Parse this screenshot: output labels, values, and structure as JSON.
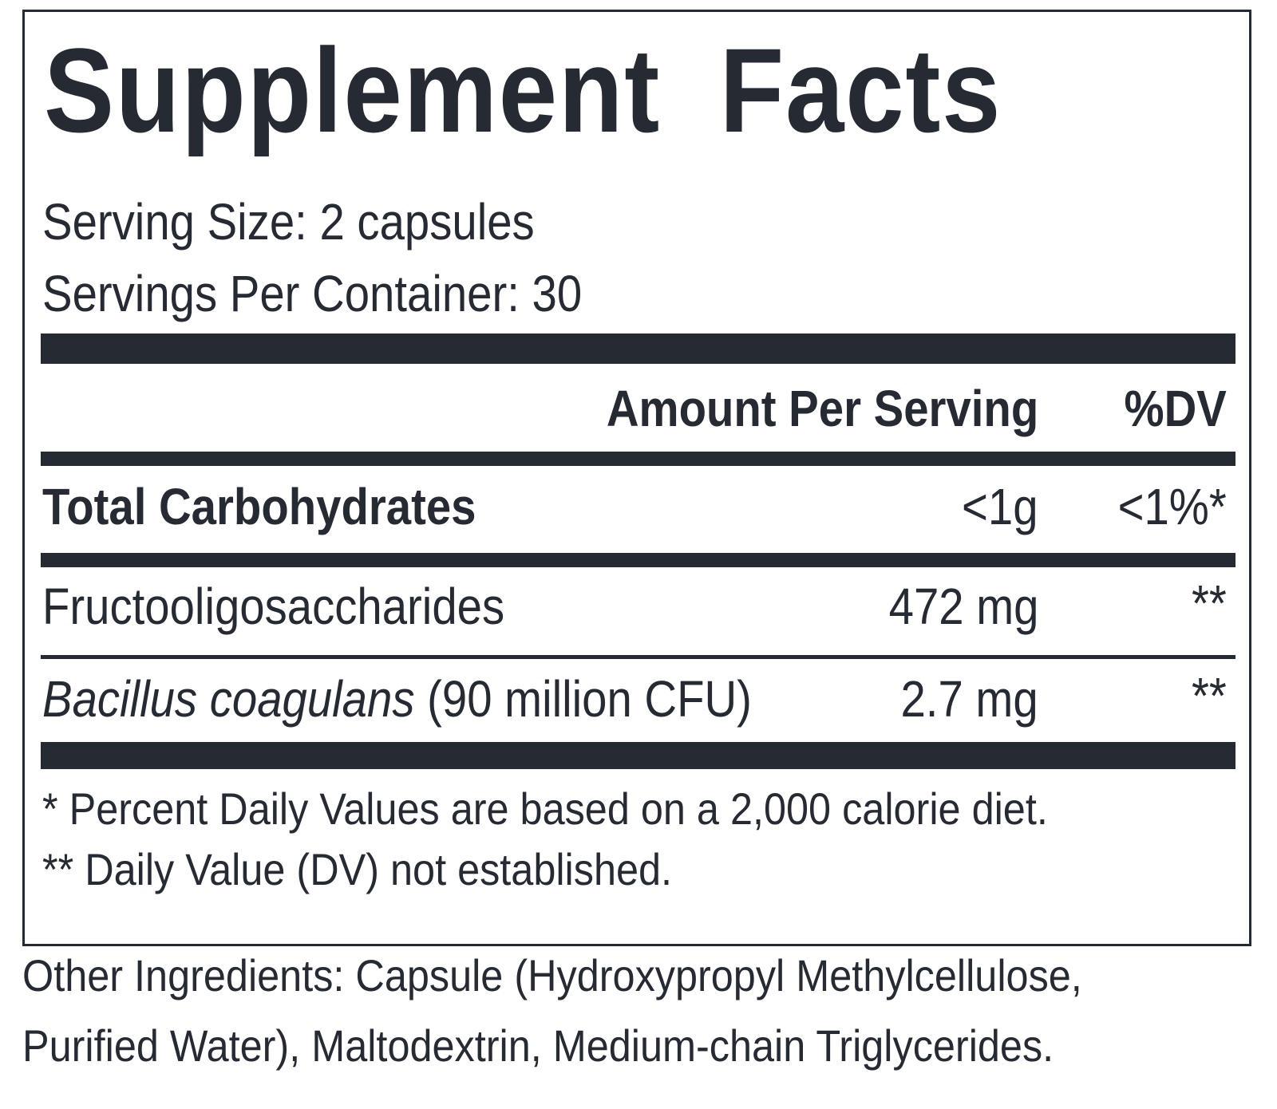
{
  "label": {
    "title": "Supplement Facts",
    "serving_size": "Serving Size: 2 capsules",
    "servings_per_container": "Servings Per Container: 30",
    "header": {
      "amount": "Amount Per Serving",
      "dv": "%DV"
    },
    "rows": [
      {
        "name": "Total Carbohydrates",
        "amount": "<1g",
        "dv": "<1%*"
      },
      {
        "name": "Fructooligosaccharides",
        "amount": "472 mg",
        "dv": "**"
      },
      {
        "name_italic": "Bacillus coagulans",
        "name_rest": " (90 million CFU)",
        "amount": "2.7 mg",
        "dv": "**"
      }
    ],
    "footnotes": [
      "* Percent Daily Values are based on a 2,000 calorie diet.",
      "** Daily Value (DV) not established."
    ]
  },
  "other_ingredients": {
    "line1": "Other Ingredients: Capsule (Hydroxypropyl Methylcellulose,",
    "line2": "Purified Water), Maltodextrin, Medium-chain Triglycerides."
  }
}
